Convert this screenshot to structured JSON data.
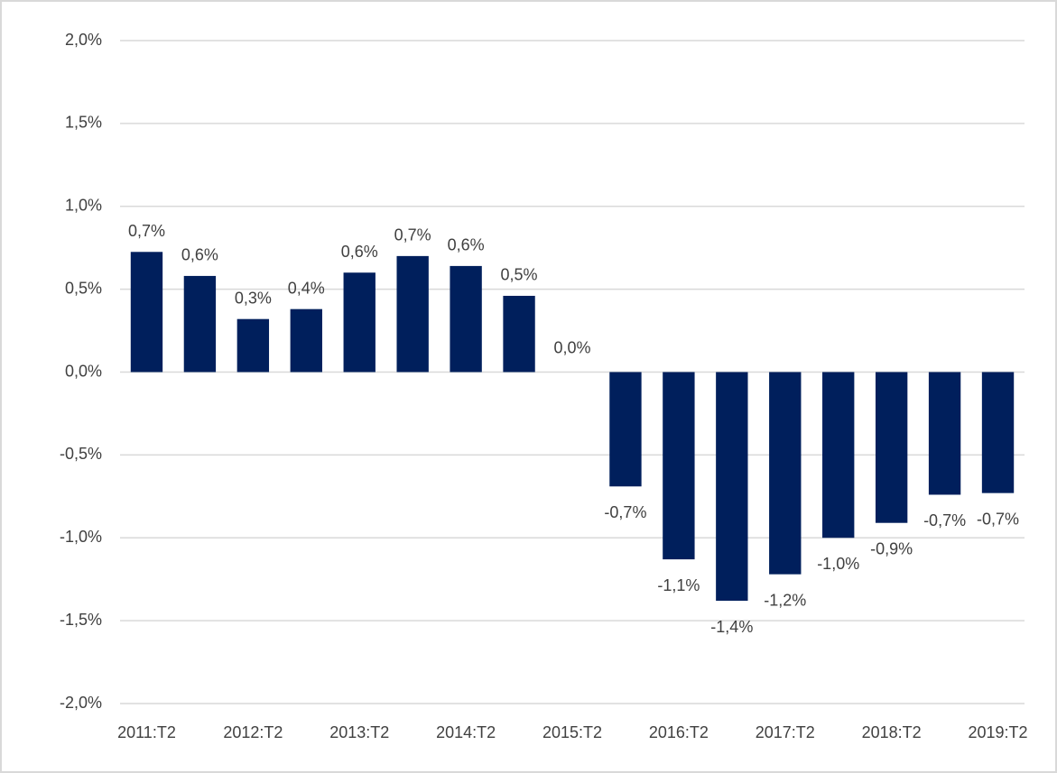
{
  "chart_data": {
    "type": "bar",
    "categories": [
      "2011:T2",
      null,
      "2012:T2",
      null,
      "2013:T2",
      null,
      "2014:T2",
      null,
      "2015:T2",
      null,
      "2016:T2",
      null,
      "2017:T2",
      null,
      "2018:T2",
      null,
      "2019:T2"
    ],
    "values": [
      0.725,
      0.58,
      0.32,
      0.38,
      0.6,
      0.7,
      0.64,
      0.46,
      0.0,
      -0.69,
      -1.13,
      -1.38,
      -1.22,
      -1.0,
      -0.91,
      -0.74,
      -0.73
    ],
    "value_labels": [
      "0,7%",
      "0,6%",
      "0,3%",
      "0,4%",
      "0,6%",
      "0,7%",
      "0,6%",
      "0,5%",
      "0,0%",
      "-0,7%",
      "-1,1%",
      "-1,4%",
      "-1,2%",
      "-1,0%",
      "-0,9%",
      "-0,7%",
      "-0,7%"
    ],
    "color": "#001f5c",
    "ylim": [
      -2.0,
      2.0
    ],
    "yticks": [
      {
        "value": -2.0,
        "label": "-2,0%"
      },
      {
        "value": -1.5,
        "label": "-1,5%"
      },
      {
        "value": -1.0,
        "label": "-1,0%"
      },
      {
        "value": -0.5,
        "label": "-0,5%"
      },
      {
        "value": 0.0,
        "label": "0,0%"
      },
      {
        "value": 0.5,
        "label": "0,5%"
      },
      {
        "value": 1.0,
        "label": "1,0%"
      },
      {
        "value": 1.5,
        "label": "1,5%"
      },
      {
        "value": 2.0,
        "label": "2,0%"
      }
    ],
    "grid": true
  }
}
